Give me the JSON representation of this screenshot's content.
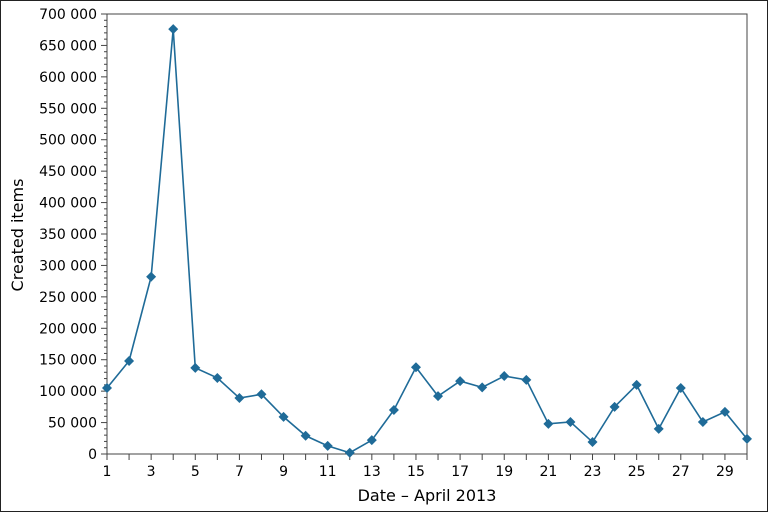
{
  "chart_data": {
    "type": "line",
    "title": "",
    "xlabel": "Date – April 2013",
    "ylabel": "Created items",
    "x": [
      1,
      2,
      3,
      4,
      5,
      6,
      7,
      8,
      9,
      10,
      11,
      12,
      13,
      14,
      15,
      16,
      17,
      18,
      19,
      20,
      21,
      22,
      23,
      24,
      25,
      26,
      27,
      28,
      29,
      30
    ],
    "values": [
      105000,
      148000,
      282000,
      676000,
      137000,
      121000,
      89000,
      95000,
      59000,
      29000,
      13000,
      2000,
      22000,
      70000,
      138000,
      92000,
      116000,
      106000,
      124000,
      118000,
      48000,
      51000,
      19000,
      75000,
      110000,
      40000,
      105000,
      51000,
      67000,
      24000
    ],
    "xlim": [
      1,
      30
    ],
    "ylim": [
      0,
      700000
    ],
    "x_tick_labels": [
      "1",
      "3",
      "5",
      "7",
      "9",
      "11",
      "13",
      "15",
      "17",
      "19",
      "21",
      "23",
      "25",
      "27",
      "29"
    ],
    "y_tick_labels": [
      "0",
      "50 000",
      "100 000",
      "150 000",
      "200 000",
      "250 000",
      "300 000",
      "350 000",
      "400 000",
      "450 000",
      "500 000",
      "550 000",
      "600 000",
      "650 000",
      "700 000"
    ],
    "y_major_step": 50000,
    "y_minor_step": 10000,
    "marker": "diamond",
    "grid": false,
    "line_color": "#1f6b98"
  }
}
